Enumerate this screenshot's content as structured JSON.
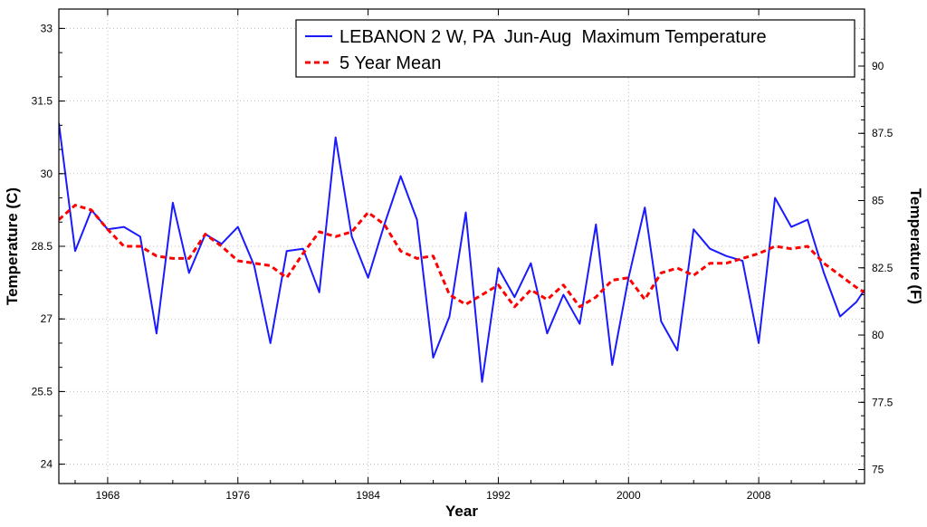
{
  "chart_data": {
    "type": "line",
    "xlabel": "Year",
    "ylabel": "Temperature (C)",
    "ylabel_right": "Temperature (F)",
    "xlim": [
      1965,
      2014.5
    ],
    "ylim": [
      23.6,
      33.4
    ],
    "ylim_right_f": [
      74.48,
      92.12
    ],
    "x_ticks": [
      1968,
      1976,
      1984,
      1992,
      2000,
      2008
    ],
    "x_tick_labels": [
      "1968",
      "1976",
      "1984",
      "1992",
      "2000",
      "2008"
    ],
    "y_ticks": [
      24,
      25.5,
      27,
      28.5,
      30,
      31.5,
      33
    ],
    "y_tick_labels": [
      "24",
      "25.5",
      "27",
      "28.5",
      "30",
      "31.5",
      "33"
    ],
    "y_right_ticks": [
      75,
      77.5,
      80,
      82.5,
      85,
      87.5,
      90
    ],
    "y_right_tick_labels": [
      "75",
      "77.5",
      "80",
      "82.5",
      "85",
      "87.5",
      "90"
    ],
    "grid": true,
    "legend_position": "top-right",
    "series": [
      {
        "name": "LEBANON 2 W, PA  Jun-Aug  Maximum Temperature",
        "color": "#1a1aff",
        "style": "solid",
        "x": [
          1965,
          1966,
          1967,
          1968,
          1969,
          1970,
          1971,
          1972,
          1973,
          1974,
          1975,
          1976,
          1977,
          1978,
          1979,
          1980,
          1981,
          1982,
          1983,
          1984,
          1985,
          1986,
          1987,
          1988,
          1989,
          1990,
          1991,
          1992,
          1993,
          1994,
          1995,
          1996,
          1997,
          1998,
          1999,
          2000,
          2001,
          2002,
          2003,
          2004,
          2005,
          2006,
          2007,
          2008,
          2009,
          2010,
          2011,
          2012,
          2013,
          2014,
          2014.5
        ],
        "y": [
          31.05,
          28.4,
          29.25,
          28.85,
          28.9,
          28.7,
          26.7,
          29.4,
          27.95,
          28.75,
          28.55,
          28.9,
          28.1,
          26.5,
          28.4,
          28.45,
          27.55,
          30.75,
          28.7,
          27.85,
          28.95,
          29.95,
          29.05,
          26.2,
          27.05,
          29.2,
          25.7,
          28.05,
          27.45,
          28.15,
          26.7,
          27.5,
          26.9,
          28.95,
          26.05,
          27.85,
          29.3,
          26.95,
          26.35,
          28.85,
          28.45,
          28.3,
          28.2,
          26.5,
          29.5,
          28.9,
          29.05,
          27.95,
          27.05,
          27.35,
          27.6
        ]
      },
      {
        "name": "5 Year Mean",
        "color": "#ff0000",
        "style": "dashed",
        "x": [
          1965,
          1966,
          1967,
          1968,
          1969,
          1970,
          1971,
          1972,
          1973,
          1974,
          1975,
          1976,
          1977,
          1978,
          1979,
          1980,
          1981,
          1982,
          1983,
          1984,
          1985,
          1986,
          1987,
          1988,
          1989,
          1990,
          1991,
          1992,
          1993,
          1994,
          1995,
          1996,
          1997,
          1998,
          1999,
          2000,
          2001,
          2002,
          2003,
          2004,
          2005,
          2006,
          2007,
          2008,
          2009,
          2010,
          2011,
          2012,
          2013,
          2014,
          2014.5
        ],
        "y": [
          29.05,
          29.35,
          29.25,
          28.85,
          28.5,
          28.5,
          28.3,
          28.25,
          28.25,
          28.75,
          28.5,
          28.2,
          28.15,
          28.1,
          27.85,
          28.35,
          28.8,
          28.7,
          28.8,
          29.2,
          28.95,
          28.4,
          28.25,
          28.3,
          27.5,
          27.3,
          27.5,
          27.7,
          27.25,
          27.6,
          27.4,
          27.7,
          27.25,
          27.45,
          27.8,
          27.85,
          27.4,
          27.95,
          28.05,
          27.9,
          28.15,
          28.15,
          28.25,
          28.35,
          28.5,
          28.45,
          28.5,
          28.15,
          27.9,
          27.65,
          27.55
        ]
      }
    ]
  }
}
